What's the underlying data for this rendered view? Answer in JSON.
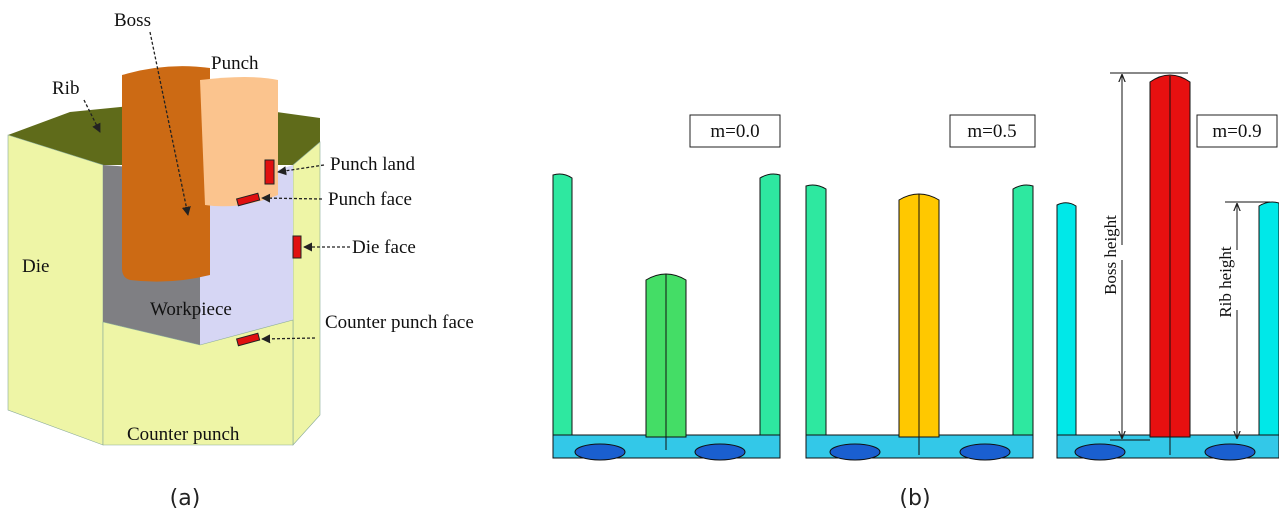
{
  "panel_a": {
    "labels": {
      "boss": "Boss",
      "punch": "Punch",
      "rib": "Rib",
      "punch_land": "Punch land",
      "punch_face": "Punch face",
      "die_face": "Die face",
      "die": "Die",
      "workpiece": "Workpiece",
      "counter_punch_face": "Counter punch face",
      "counter_punch": "Counter punch"
    },
    "caption": "(a)"
  },
  "panel_b": {
    "cases": [
      {
        "label": "m=0.0"
      },
      {
        "label": "m=0.5"
      },
      {
        "label": "m=0.9"
      }
    ],
    "boss_height": "Boss height",
    "rib_height": "Rib height",
    "caption": "(b)"
  }
}
